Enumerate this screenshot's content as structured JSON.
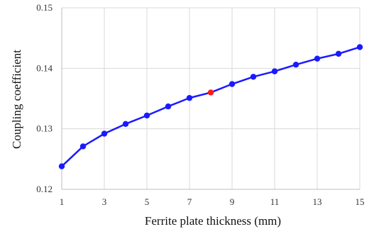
{
  "chart_data": {
    "type": "line",
    "xlabel": "Ferrite plate thickness  (mm)",
    "ylabel": "Coupling coefficient",
    "xlim": [
      1,
      15
    ],
    "ylim": [
      0.12,
      0.15
    ],
    "x_ticks": [
      "1",
      "3",
      "5",
      "7",
      "9",
      "11",
      "13",
      "15"
    ],
    "y_ticks": [
      "0.12",
      "0.13",
      "0.14",
      "0.15"
    ],
    "grid": true,
    "legend": "none",
    "series": [
      {
        "color": "#1a1aff",
        "x": [
          1,
          2,
          3,
          4,
          5,
          6,
          7,
          8,
          9,
          10,
          11,
          12,
          13,
          14,
          15
        ],
        "y": [
          0.1238,
          0.1271,
          0.1292,
          0.1308,
          0.1322,
          0.1337,
          0.1351,
          0.136,
          0.1374,
          0.1386,
          0.1395,
          0.1406,
          0.1416,
          0.1424,
          0.1435
        ]
      }
    ],
    "highlight": {
      "x": 8,
      "y": 0.136,
      "color": "#ff1a1a"
    }
  }
}
